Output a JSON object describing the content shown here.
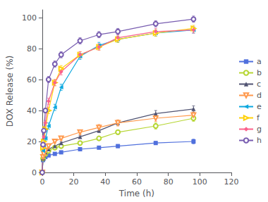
{
  "chart_data": {
    "type": "line",
    "xlabel": "Time (h)",
    "ylabel": "DOX Release (%)",
    "xlim": [
      0,
      120
    ],
    "ylim": [
      0,
      105
    ],
    "xticks": [
      0,
      20,
      40,
      60,
      80,
      100,
      120
    ],
    "yticks": [
      0,
      20,
      40,
      60,
      80,
      100
    ],
    "grid": false,
    "legend": "right",
    "x": [
      0,
      0.5,
      1,
      2,
      4,
      8,
      12,
      24,
      36,
      48,
      72,
      96
    ],
    "series": [
      {
        "name": "a",
        "marker": "square",
        "values": [
          0,
          8,
          9,
          10,
          11,
          12,
          13,
          15,
          16,
          17,
          19,
          20
        ],
        "errors": [
          0,
          0.5,
          0.5,
          0.5,
          0.5,
          0.5,
          0.5,
          0.8,
          0.8,
          1,
          1,
          1.5
        ]
      },
      {
        "name": "b",
        "marker": "circle-open",
        "values": [
          0,
          9,
          11,
          12,
          14,
          16,
          17,
          19,
          22,
          26,
          30,
          35
        ],
        "errors": [
          0,
          0.5,
          0.5,
          0.5,
          0.5,
          0.5,
          0.8,
          1,
          1.2,
          1.5,
          2,
          2
        ]
      },
      {
        "name": "c",
        "marker": "triangle-up",
        "values": [
          0,
          9,
          11,
          13,
          15,
          17,
          19,
          23,
          27,
          32,
          38,
          41
        ],
        "errors": [
          0,
          0.5,
          0.5,
          0.5,
          0.5,
          0.5,
          0.8,
          1,
          1.2,
          1.5,
          2,
          2
        ]
      },
      {
        "name": "d",
        "marker": "triangle-down-open",
        "values": [
          0,
          10,
          12,
          14,
          17,
          20,
          22,
          26,
          29,
          32,
          35,
          37
        ],
        "errors": [
          0,
          0.5,
          0.5,
          0.5,
          0.8,
          1,
          1.2,
          1.5,
          2,
          2,
          2,
          2
        ]
      },
      {
        "name": "e",
        "marker": "triangle-left",
        "values": [
          0,
          14,
          17,
          22,
          30,
          42,
          55,
          75,
          82,
          86,
          90,
          92
        ],
        "errors": [
          0,
          1,
          1,
          1.5,
          2,
          2,
          2,
          2,
          2,
          2,
          2,
          2
        ]
      },
      {
        "name": "f",
        "marker": "triangle-right-open",
        "values": [
          0,
          16,
          20,
          28,
          40,
          58,
          67,
          76,
          81,
          86,
          90,
          93
        ],
        "errors": [
          0,
          1,
          1,
          1.5,
          2,
          2,
          2,
          2,
          2,
          2,
          2,
          2
        ]
      },
      {
        "name": "g",
        "marker": "diamond",
        "values": [
          0,
          17,
          23,
          32,
          46,
          58,
          65,
          76,
          81,
          87,
          91,
          92
        ],
        "errors": [
          0,
          1,
          1,
          1.5,
          2,
          2,
          2,
          2,
          2,
          2,
          2,
          2
        ]
      },
      {
        "name": "h",
        "marker": "circle-open",
        "values": [
          0,
          18,
          27,
          40,
          60,
          70,
          76,
          85,
          89,
          91,
          96,
          99
        ],
        "errors": [
          0,
          1,
          1,
          1.5,
          2,
          2,
          2,
          2,
          2,
          2,
          2,
          2
        ]
      }
    ]
  }
}
